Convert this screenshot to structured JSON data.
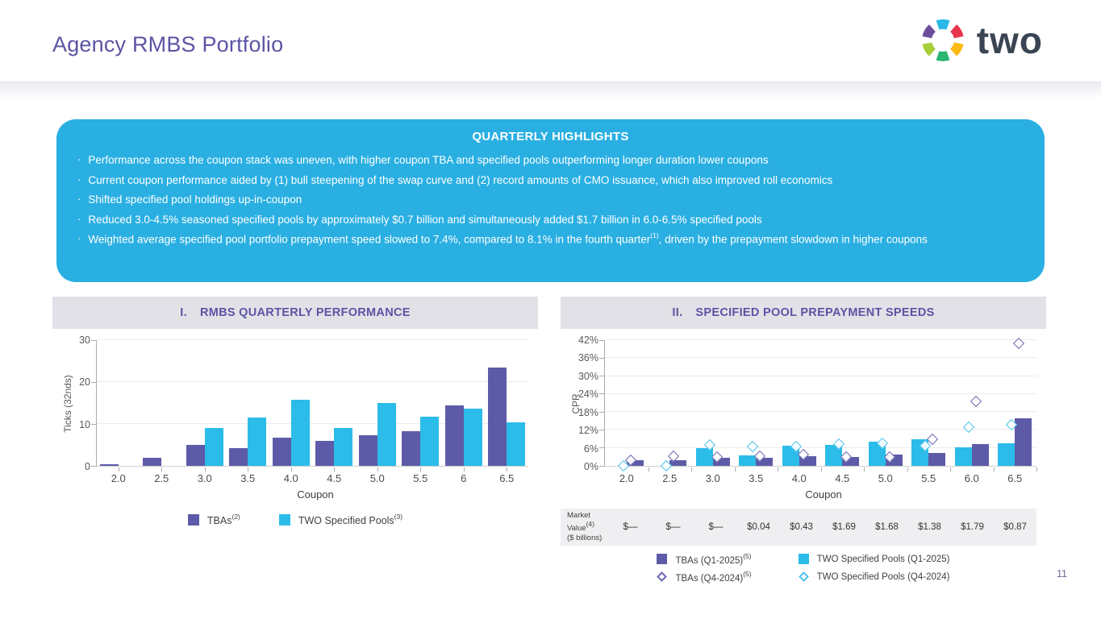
{
  "page": {
    "title": "Agency RMBS Portfolio",
    "page_number": "11",
    "logo_text": "two"
  },
  "logo_colors": {
    "petal_top": "#29B8E8",
    "petal_upper_right": "#E9344D",
    "petal_lower_right": "#FDB913",
    "petal_bottom": "#2BB673",
    "petal_lower_left": "#A6CE39",
    "petal_upper_left": "#6E4D9F",
    "wordmark": "#3A4554"
  },
  "highlights": {
    "title": "QUARTERLY HIGHLIGHTS",
    "bullets": [
      {
        "segments": [
          {
            "t": "Performance across the coupon stack was uneven, with higher coupon TBA and specified pools outperforming longer duration lower coupons"
          }
        ]
      },
      {
        "segments": [
          {
            "t": "Current coupon performance aided by (1) bull steepening of the swap curve and (2) record amounts of CMO issuance, which also improved roll economics"
          }
        ]
      },
      {
        "segments": [
          {
            "t": "Shifted specified pool holdings up-in-coupon"
          }
        ]
      },
      {
        "segments": [
          {
            "t": "Reduced 3.0-4.5% seasoned specified pools by approximately $0.7 billion and simultaneously added $1.7 billion in 6.0-6.5% specified pools"
          }
        ]
      },
      {
        "segments": [
          {
            "t": "Weighted average specified pool portfolio prepayment speed slowed to 7.4%, compared to 8.1% in the fourth quarter"
          },
          {
            "sup": "(1)"
          },
          {
            "t": ", driven by the prepayment slowdown in higher coupons"
          }
        ]
      }
    ],
    "panel_color": "#29AFE2"
  },
  "chart_data": [
    {
      "type": "bar",
      "panel_title_prefix": "I.",
      "title": "RMBS QUARTERLY PERFORMANCE",
      "xlabel": "Coupon",
      "ylabel": "Ticks (32nds)",
      "ylim": [
        0,
        30
      ],
      "yticks": [
        0,
        10,
        20,
        30
      ],
      "ytick_suffix": "",
      "grid": true,
      "legend_position": "bottom",
      "categories": [
        "2.0",
        "2.5",
        "3.0",
        "3.5",
        "4.0",
        "4.5",
        "5.0",
        "5.5",
        "6",
        "6.5"
      ],
      "series": [
        {
          "key": "tbas",
          "name": "TBAs",
          "sup": "(2)",
          "color": "#5D5BA7",
          "values": [
            0.3,
            1.9,
            5.0,
            4.2,
            6.7,
            6.0,
            7.3,
            8.2,
            14.5,
            23.5
          ]
        },
        {
          "key": "two-specified-pools",
          "name": "TWO Specified Pools",
          "sup": "(3)",
          "color": "#2BBCE9",
          "values": [
            0,
            0,
            9.0,
            11.6,
            15.8,
            9.0,
            15.0,
            11.8,
            13.7,
            10.3
          ]
        }
      ]
    },
    {
      "type": "bar+scatter",
      "panel_title_prefix": "II.",
      "title": "SPECIFIED POOL PREPAYMENT SPEEDS",
      "xlabel": "Coupon",
      "ylabel": "CPR",
      "ylim": [
        0,
        42
      ],
      "yticks": [
        0,
        6,
        12,
        18,
        24,
        30,
        36,
        42
      ],
      "ytick_suffix": "%",
      "grid": true,
      "legend_position": "bottom",
      "categories": [
        "2.0",
        "2.5",
        "3.0",
        "3.5",
        "4.0",
        "4.5",
        "5.0",
        "5.5",
        "6.0",
        "6.5"
      ],
      "bar_series": [
        {
          "key": "two-specified-pools-q1-2025",
          "name": "TWO Specified Pools (Q1-2025)",
          "color": "#2BBCE9",
          "values": [
            0,
            0,
            5.8,
            3.5,
            6.8,
            7.0,
            8.0,
            9.0,
            6.3,
            7.5
          ]
        },
        {
          "key": "tbas-q1-2025",
          "name": "TBAs (Q1-2025)",
          "sup": "(5)",
          "color": "#5D5BA7",
          "values": [
            1.8,
            1.8,
            2.8,
            2.6,
            3.2,
            3.0,
            3.9,
            4.2,
            7.3,
            16.0
          ]
        }
      ],
      "scatter_series": [
        {
          "key": "tbas-q4-2024",
          "name": "TBAs (Q4-2024)",
          "sup": "(5)",
          "color": "#6B69B0",
          "marker": "diamond",
          "offset": 5,
          "values": [
            2.0,
            3.2,
            2.9,
            3.2,
            3.7,
            2.9,
            2.9,
            9.0,
            21.5,
            41.0
          ]
        },
        {
          "key": "two-specified-pools-q4-2024",
          "name": "TWO Specified Pools (Q4-2024)",
          "color": "#4FC3EE",
          "marker": "diamond",
          "offset": -4,
          "values": [
            0,
            0,
            6.9,
            6.6,
            6.4,
            7.2,
            7.6,
            6.8,
            13.0,
            13.8
          ]
        }
      ],
      "legend_order": [
        "tbas-q1-2025",
        "two-specified-pools-q1-2025",
        "tbas-q4-2024",
        "two-specified-pools-q4-2024"
      ],
      "market_value": {
        "label": "Market Value",
        "label_sup": "(4)",
        "label_line2": "($ billions)",
        "values": [
          "$—",
          "$—",
          "$—",
          "$0.04",
          "$0.43",
          "$1.69",
          "$1.68",
          "$1.38",
          "$1.79",
          "$0.87"
        ]
      }
    }
  ]
}
